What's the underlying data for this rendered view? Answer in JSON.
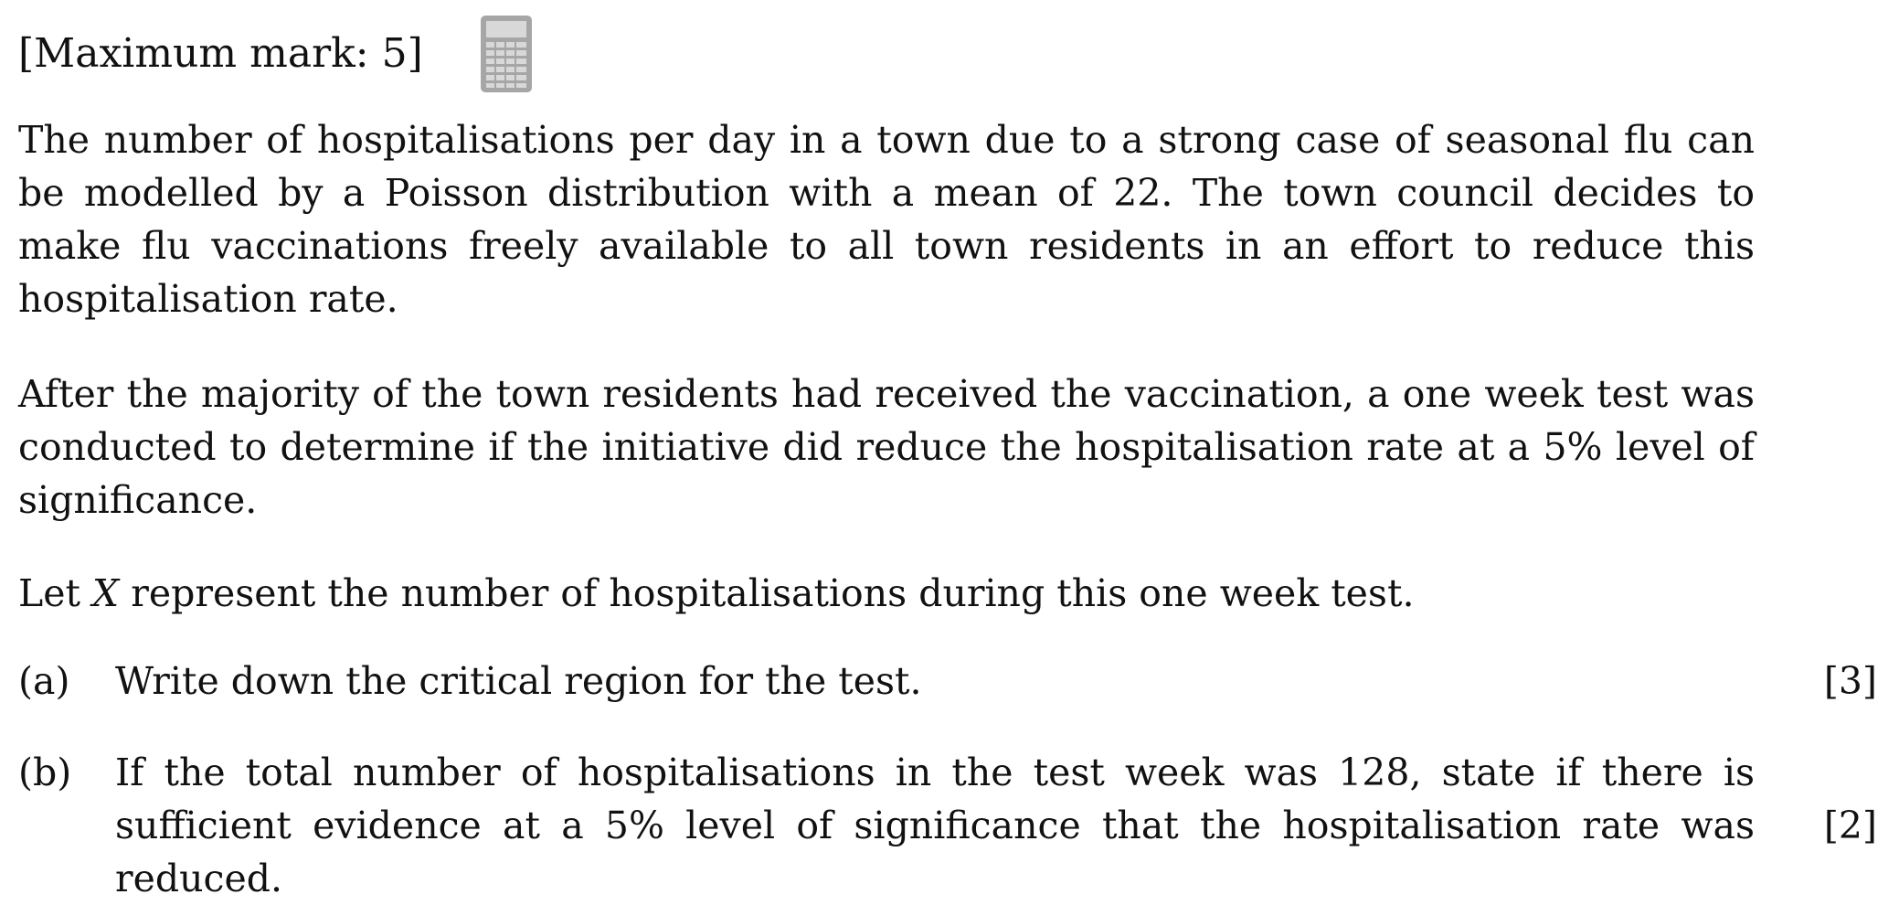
{
  "header": {
    "max_mark": "[Maximum mark: 5]",
    "calculator_icon": "calculator-icon"
  },
  "paragraphs": {
    "p1": "The number of hospitalisations per day in a town due to a strong case of seasonal flu can be modelled by a Poisson distribution with a mean of 22. The town council decides to make flu vaccinations freely available to all town residents in an effort to reduce this hospitalisation rate.",
    "p2": "After the majority of the town residents had received the vaccination, a one week test was conducted to determine if the initiative did reduce the hospitalisation rate at a 5% level of significance.",
    "p3_before": "Let ",
    "p3_var": "X",
    "p3_after": " represent the number of hospitalisations during this one week test."
  },
  "questions": [
    {
      "label": "(a)",
      "text": "Write down the critical region for the test.",
      "marks": "[3]"
    },
    {
      "label": "(b)",
      "text": "If the total number of hospitalisations in the test week was 128, state if there is sufficient evidence at a 5% level of significance that the hospitalisation rate was reduced.",
      "marks": "[2]"
    }
  ]
}
